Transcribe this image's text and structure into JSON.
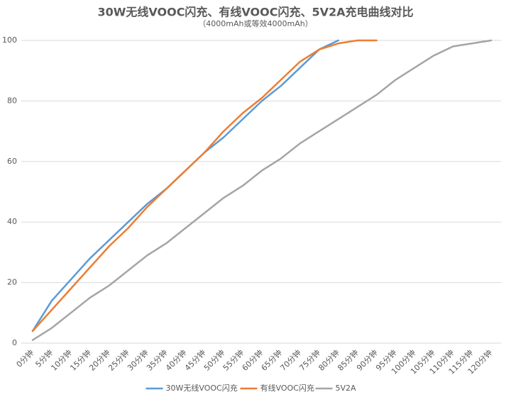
{
  "chart_data": {
    "type": "line",
    "title": "30W无线VOOC闪充、有线VOOC闪充、5V2A充电曲线对比",
    "subtitle": "（4000mAh或等效4000mAh）",
    "categories": [
      "0分钟",
      "5分钟",
      "10分钟",
      "15分钟",
      "20分钟",
      "25分钟",
      "30分钟",
      "35分钟",
      "40分钟",
      "45分钟",
      "50分钟",
      "55分钟",
      "60分钟",
      "65分钟",
      "70分钟",
      "75分钟",
      "80分钟",
      "85分钟",
      "90分钟",
      "95分钟",
      "100分钟",
      "105分钟",
      "110分钟",
      "115分钟",
      "120分钟"
    ],
    "series": [
      {
        "name": "30W无线VOOC闪充",
        "color": "#5b9bd5",
        "values": [
          4,
          14,
          21,
          28,
          34,
          40,
          46,
          51,
          57,
          63,
          68,
          74,
          80,
          85,
          91,
          97,
          100,
          null,
          null,
          null,
          null,
          null,
          null,
          null,
          null
        ]
      },
      {
        "name": "有线VOOC闪充",
        "color": "#ed7d31",
        "values": [
          4,
          11,
          18,
          25,
          32,
          38,
          45,
          51,
          57,
          63,
          70,
          76,
          81,
          87,
          93,
          97,
          99,
          100,
          100,
          null,
          null,
          null,
          null,
          null,
          null
        ]
      },
      {
        "name": "5V2A",
        "color": "#a5a5a5",
        "values": [
          1,
          5,
          10,
          15,
          19,
          24,
          29,
          33,
          38,
          43,
          48,
          52,
          57,
          61,
          66,
          70,
          74,
          78,
          82,
          87,
          91,
          95,
          98,
          99,
          100
        ]
      }
    ],
    "ylim": [
      0,
      100
    ],
    "yticks": [
      0,
      20,
      40,
      60,
      80,
      100
    ],
    "grid": true,
    "legend": "bottom"
  }
}
